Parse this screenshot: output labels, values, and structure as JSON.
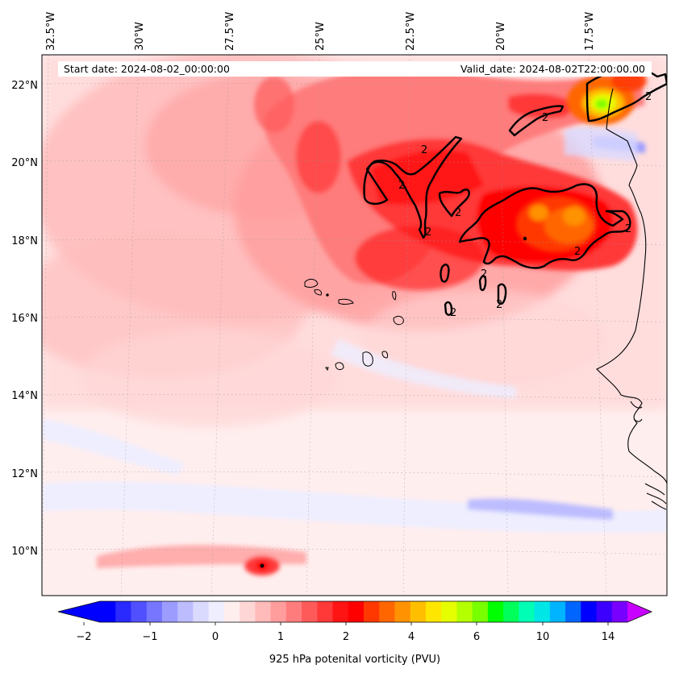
{
  "header": {
    "start_date": "Start date: 2024-08-02_00:00:00",
    "valid_date": "Valid_date: 2024-08-02T22:00:00.00"
  },
  "lon_labels": [
    "32.5°W",
    "30°W",
    "27.5°W",
    "25°W",
    "22.5°W",
    "20°W",
    "17.5°W"
  ],
  "lat_labels": [
    "22°N",
    "20°N",
    "18°N",
    "16°N",
    "14°N",
    "12°N",
    "10°N"
  ],
  "colorbar": {
    "title": "925 hPa potenital vorticity (PVU)",
    "ticks": [
      "−2",
      "−1",
      "0",
      "1",
      "2",
      "4",
      "6",
      "10",
      "14"
    ],
    "colors": [
      "#0000ff",
      "#2a2aff",
      "#5050ff",
      "#7676ff",
      "#9c9cff",
      "#bcbcff",
      "#dadaff",
      "#eeeeff",
      "#ffeeee",
      "#ffd6d6",
      "#ffbaba",
      "#ff9c9c",
      "#ff7c7c",
      "#ff5a5a",
      "#ff3838",
      "#ff1414",
      "#ff0000",
      "#ff3800",
      "#ff6600",
      "#ff9200",
      "#ffbe00",
      "#ffe600",
      "#e6ff00",
      "#b4ff00",
      "#78ff00",
      "#00ff00",
      "#00ff5a",
      "#00ffb4",
      "#00e6e6",
      "#00b4ff",
      "#0064ff",
      "#0000ff",
      "#3c00ff",
      "#7800ff"
    ],
    "over_color": "#c800ff",
    "under_color": "#0000ff"
  },
  "contour_label": "2",
  "colors": {
    "background": "#ffeeee",
    "frame": "#000000",
    "contour": "#000000"
  }
}
